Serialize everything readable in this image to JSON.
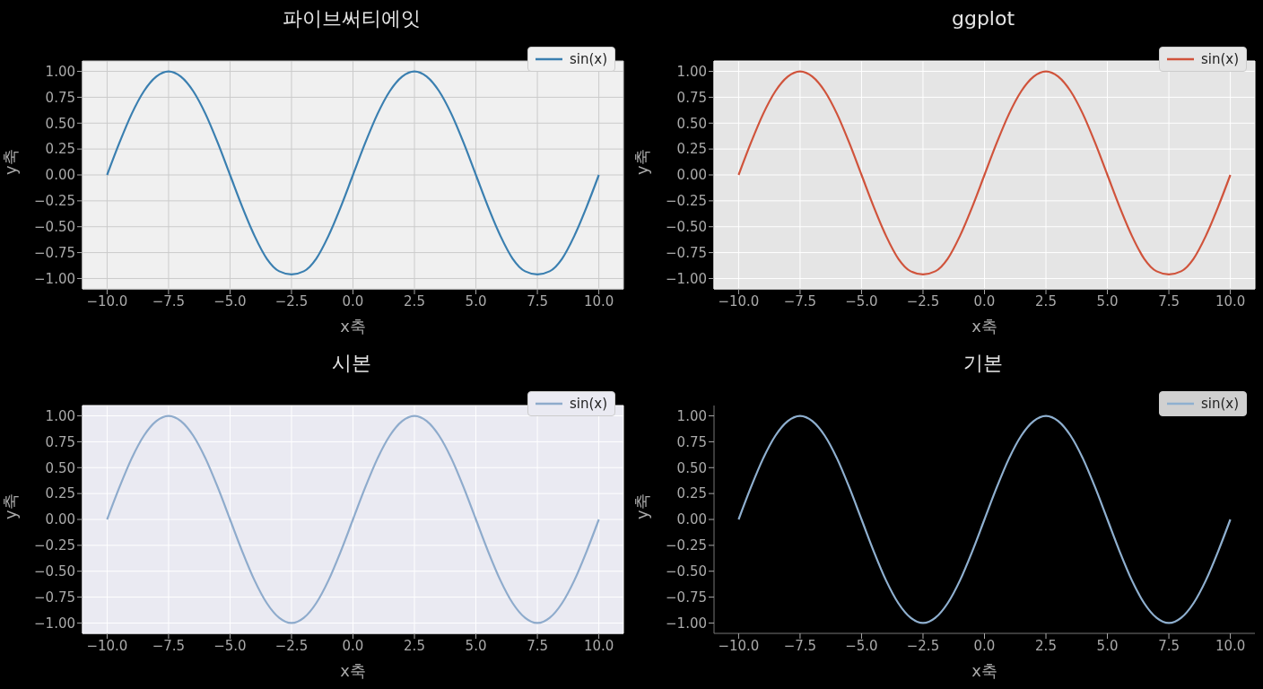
{
  "chart_data": [
    {
      "type": "line",
      "title": "파이브써티에잇",
      "xlabel": "x축",
      "ylabel": "y축",
      "x": [
        -10,
        -9.5,
        -9,
        -8.5,
        -8,
        -7.5,
        -7,
        -6.5,
        -6,
        -5.5,
        -5,
        -4.5,
        -4,
        -3.5,
        -3,
        -2.5,
        -2,
        -1.5,
        -1,
        -0.5,
        0,
        0.5,
        1,
        1.5,
        2,
        2.5,
        3,
        3.5,
        4,
        4.5,
        5,
        5.5,
        6,
        6.5,
        7,
        7.5,
        8,
        8.5,
        9,
        9.5,
        10
      ],
      "series": [
        {
          "name": "sin(x)",
          "color": "#3a7fb0",
          "values": [
            0,
            0.31,
            0.59,
            0.81,
            0.95,
            1,
            0.95,
            0.81,
            0.59,
            0.31,
            0,
            -0.31,
            -0.59,
            -0.81,
            -0.93,
            -0.96,
            -0.93,
            -0.81,
            -0.59,
            -0.31,
            0,
            0.31,
            0.59,
            0.81,
            0.95,
            1,
            0.95,
            0.81,
            0.59,
            0.31,
            0,
            -0.31,
            -0.59,
            -0.81,
            -0.93,
            -0.96,
            -0.93,
            -0.81,
            -0.59,
            -0.31,
            0
          ]
        }
      ],
      "xlim": [
        -11,
        11
      ],
      "ylim": [
        -1.1,
        1.1
      ],
      "xticks": [
        {
          "value": -10,
          "label": "−10.0"
        },
        {
          "value": -7.5,
          "label": "−7.5"
        },
        {
          "value": -5,
          "label": "−5.0"
        },
        {
          "value": -2.5,
          "label": "−2.5"
        },
        {
          "value": 0,
          "label": "0.0"
        },
        {
          "value": 2.5,
          "label": "2.5"
        },
        {
          "value": 5,
          "label": "5.0"
        },
        {
          "value": 7.5,
          "label": "7.5"
        },
        {
          "value": 10,
          "label": "10.0"
        }
      ],
      "yticks": [
        {
          "value": -1,
          "label": "−1.00"
        },
        {
          "value": -0.75,
          "label": "−0.75"
        },
        {
          "value": -0.5,
          "label": "−0.50"
        },
        {
          "value": -0.25,
          "label": "−0.25"
        },
        {
          "value": 0,
          "label": "0.00"
        },
        {
          "value": 0.25,
          "label": "0.25"
        },
        {
          "value": 0.5,
          "label": "0.50"
        },
        {
          "value": 0.75,
          "label": "0.75"
        },
        {
          "value": 1,
          "label": "1.00"
        }
      ],
      "grid": true,
      "legend": "top right",
      "line_style": "solid"
    },
    {
      "type": "line",
      "title": "ggplot",
      "xlabel": "x축",
      "ylabel": "y축",
      "x": [
        -10,
        -9.5,
        -9,
        -8.5,
        -8,
        -7.5,
        -7,
        -6.5,
        -6,
        -5.5,
        -5,
        -4.5,
        -4,
        -3.5,
        -3,
        -2.5,
        -2,
        -1.5,
        -1,
        -0.5,
        0,
        0.5,
        1,
        1.5,
        2,
        2.5,
        3,
        3.5,
        4,
        4.5,
        5,
        5.5,
        6,
        6.5,
        7,
        7.5,
        8,
        8.5,
        9,
        9.5,
        10
      ],
      "series": [
        {
          "name": "sin(x)",
          "color": "#d0533b",
          "values": [
            0,
            0.31,
            0.59,
            0.81,
            0.95,
            1,
            0.95,
            0.81,
            0.59,
            0.31,
            0,
            -0.31,
            -0.59,
            -0.81,
            -0.93,
            -0.96,
            -0.93,
            -0.81,
            -0.59,
            -0.31,
            0,
            0.31,
            0.59,
            0.81,
            0.95,
            1,
            0.95,
            0.81,
            0.59,
            0.31,
            0,
            -0.31,
            -0.59,
            -0.81,
            -0.93,
            -0.96,
            -0.93,
            -0.81,
            -0.59,
            -0.31,
            0
          ]
        }
      ],
      "xlim": [
        -11,
        11
      ],
      "ylim": [
        -1.1,
        1.1
      ],
      "xticks": [
        {
          "value": -10,
          "label": "−10.0"
        },
        {
          "value": -7.5,
          "label": "−7.5"
        },
        {
          "value": -5,
          "label": "−5.0"
        },
        {
          "value": -2.5,
          "label": "−2.5"
        },
        {
          "value": 0,
          "label": "0.0"
        },
        {
          "value": 2.5,
          "label": "2.5"
        },
        {
          "value": 5,
          "label": "5.0"
        },
        {
          "value": 7.5,
          "label": "7.5"
        },
        {
          "value": 10,
          "label": "10.0"
        }
      ],
      "yticks": [
        {
          "value": -1,
          "label": "−1.00"
        },
        {
          "value": -0.75,
          "label": "−0.75"
        },
        {
          "value": -0.5,
          "label": "−0.50"
        },
        {
          "value": -0.25,
          "label": "−0.25"
        },
        {
          "value": 0,
          "label": "0.00"
        },
        {
          "value": 0.25,
          "label": "0.25"
        },
        {
          "value": 0.5,
          "label": "0.50"
        },
        {
          "value": 0.75,
          "label": "0.75"
        },
        {
          "value": 1,
          "label": "1.00"
        }
      ],
      "grid": true,
      "legend": "top right",
      "line_style": "solid"
    },
    {
      "type": "line",
      "title": "시본",
      "xlabel": "x축",
      "ylabel": "y축",
      "x": [
        -10,
        -9.5,
        -9,
        -8.5,
        -8,
        -7.5,
        -7,
        -6.5,
        -6,
        -5.5,
        -5,
        -4.5,
        -4,
        -3.5,
        -3,
        -2.5,
        -2,
        -1.5,
        -1,
        -0.5,
        0,
        0.5,
        1,
        1.5,
        2,
        2.5,
        3,
        3.5,
        4,
        4.5,
        5,
        5.5,
        6,
        6.5,
        7,
        7.5,
        8,
        8.5,
        9,
        9.5,
        10
      ],
      "series": [
        {
          "name": "sin(x)",
          "color": "#8eabcc",
          "values": [
            0,
            0.31,
            0.59,
            0.81,
            0.95,
            1,
            0.95,
            0.81,
            0.59,
            0.31,
            0,
            -0.31,
            -0.59,
            -0.81,
            -0.95,
            -1,
            -0.95,
            -0.81,
            -0.59,
            -0.31,
            0,
            0.31,
            0.59,
            0.81,
            0.95,
            1,
            0.95,
            0.81,
            0.59,
            0.31,
            0,
            -0.31,
            -0.59,
            -0.81,
            -0.95,
            -1,
            -0.95,
            -0.81,
            -0.59,
            -0.31,
            0
          ]
        }
      ],
      "xlim": [
        -11,
        11
      ],
      "ylim": [
        -1.1,
        1.1
      ],
      "xticks": [
        {
          "value": -10,
          "label": "−10.0"
        },
        {
          "value": -7.5,
          "label": "−7.5"
        },
        {
          "value": -5,
          "label": "−5.0"
        },
        {
          "value": -2.5,
          "label": "−2.5"
        },
        {
          "value": 0,
          "label": "0.0"
        },
        {
          "value": 2.5,
          "label": "2.5"
        },
        {
          "value": 5,
          "label": "5.0"
        },
        {
          "value": 7.5,
          "label": "7.5"
        },
        {
          "value": 10,
          "label": "10.0"
        }
      ],
      "yticks": [
        {
          "value": -1,
          "label": "−1.00"
        },
        {
          "value": -0.75,
          "label": "−0.75"
        },
        {
          "value": -0.5,
          "label": "−0.50"
        },
        {
          "value": -0.25,
          "label": "−0.25"
        },
        {
          "value": 0,
          "label": "0.00"
        },
        {
          "value": 0.25,
          "label": "0.25"
        },
        {
          "value": 0.5,
          "label": "0.50"
        },
        {
          "value": 0.75,
          "label": "0.75"
        },
        {
          "value": 1,
          "label": "1.00"
        }
      ],
      "grid": true,
      "legend": "top right",
      "line_style": "solid"
    },
    {
      "type": "line",
      "title": "기본",
      "xlabel": "x축",
      "ylabel": "y축",
      "x": [
        -10,
        -9.5,
        -9,
        -8.5,
        -8,
        -7.5,
        -7,
        -6.5,
        -6,
        -5.5,
        -5,
        -4.5,
        -4,
        -3.5,
        -3,
        -2.5,
        -2,
        -1.5,
        -1,
        -0.5,
        0,
        0.5,
        1,
        1.5,
        2,
        2.5,
        3,
        3.5,
        4,
        4.5,
        5,
        5.5,
        6,
        6.5,
        7,
        7.5,
        8,
        8.5,
        9,
        9.5,
        10
      ],
      "series": [
        {
          "name": "sin(x)",
          "color": "#8fb0d0",
          "values": [
            0,
            0.31,
            0.59,
            0.81,
            0.95,
            1,
            0.95,
            0.81,
            0.59,
            0.31,
            0,
            -0.31,
            -0.59,
            -0.81,
            -0.95,
            -1,
            -0.95,
            -0.81,
            -0.59,
            -0.31,
            0,
            0.31,
            0.59,
            0.81,
            0.95,
            1,
            0.95,
            0.81,
            0.59,
            0.31,
            0,
            -0.31,
            -0.59,
            -0.81,
            -0.95,
            -1,
            -0.95,
            -0.81,
            -0.59,
            -0.31,
            0
          ]
        }
      ],
      "xlim": [
        -11,
        11
      ],
      "ylim": [
        -1.1,
        1.1
      ],
      "xticks": [
        {
          "value": -10,
          "label": "−10.0"
        },
        {
          "value": -7.5,
          "label": "−7.5"
        },
        {
          "value": -5,
          "label": "−5.0"
        },
        {
          "value": -2.5,
          "label": "−2.5"
        },
        {
          "value": 0,
          "label": "0.0"
        },
        {
          "value": 2.5,
          "label": "2.5"
        },
        {
          "value": 5,
          "label": "5.0"
        },
        {
          "value": 7.5,
          "label": "7.5"
        },
        {
          "value": 10,
          "label": "10.0"
        }
      ],
      "yticks": [
        {
          "value": -1,
          "label": "−1.00"
        },
        {
          "value": -0.75,
          "label": "−0.75"
        },
        {
          "value": -0.5,
          "label": "−0.50"
        },
        {
          "value": -0.25,
          "label": "−0.25"
        },
        {
          "value": 0,
          "label": "0.00"
        },
        {
          "value": 0.25,
          "label": "0.25"
        },
        {
          "value": 0.5,
          "label": "0.50"
        },
        {
          "value": 0.75,
          "label": "0.75"
        },
        {
          "value": 1,
          "label": "1.00"
        }
      ],
      "grid": false,
      "legend": "top right",
      "line_style": "solid"
    }
  ]
}
